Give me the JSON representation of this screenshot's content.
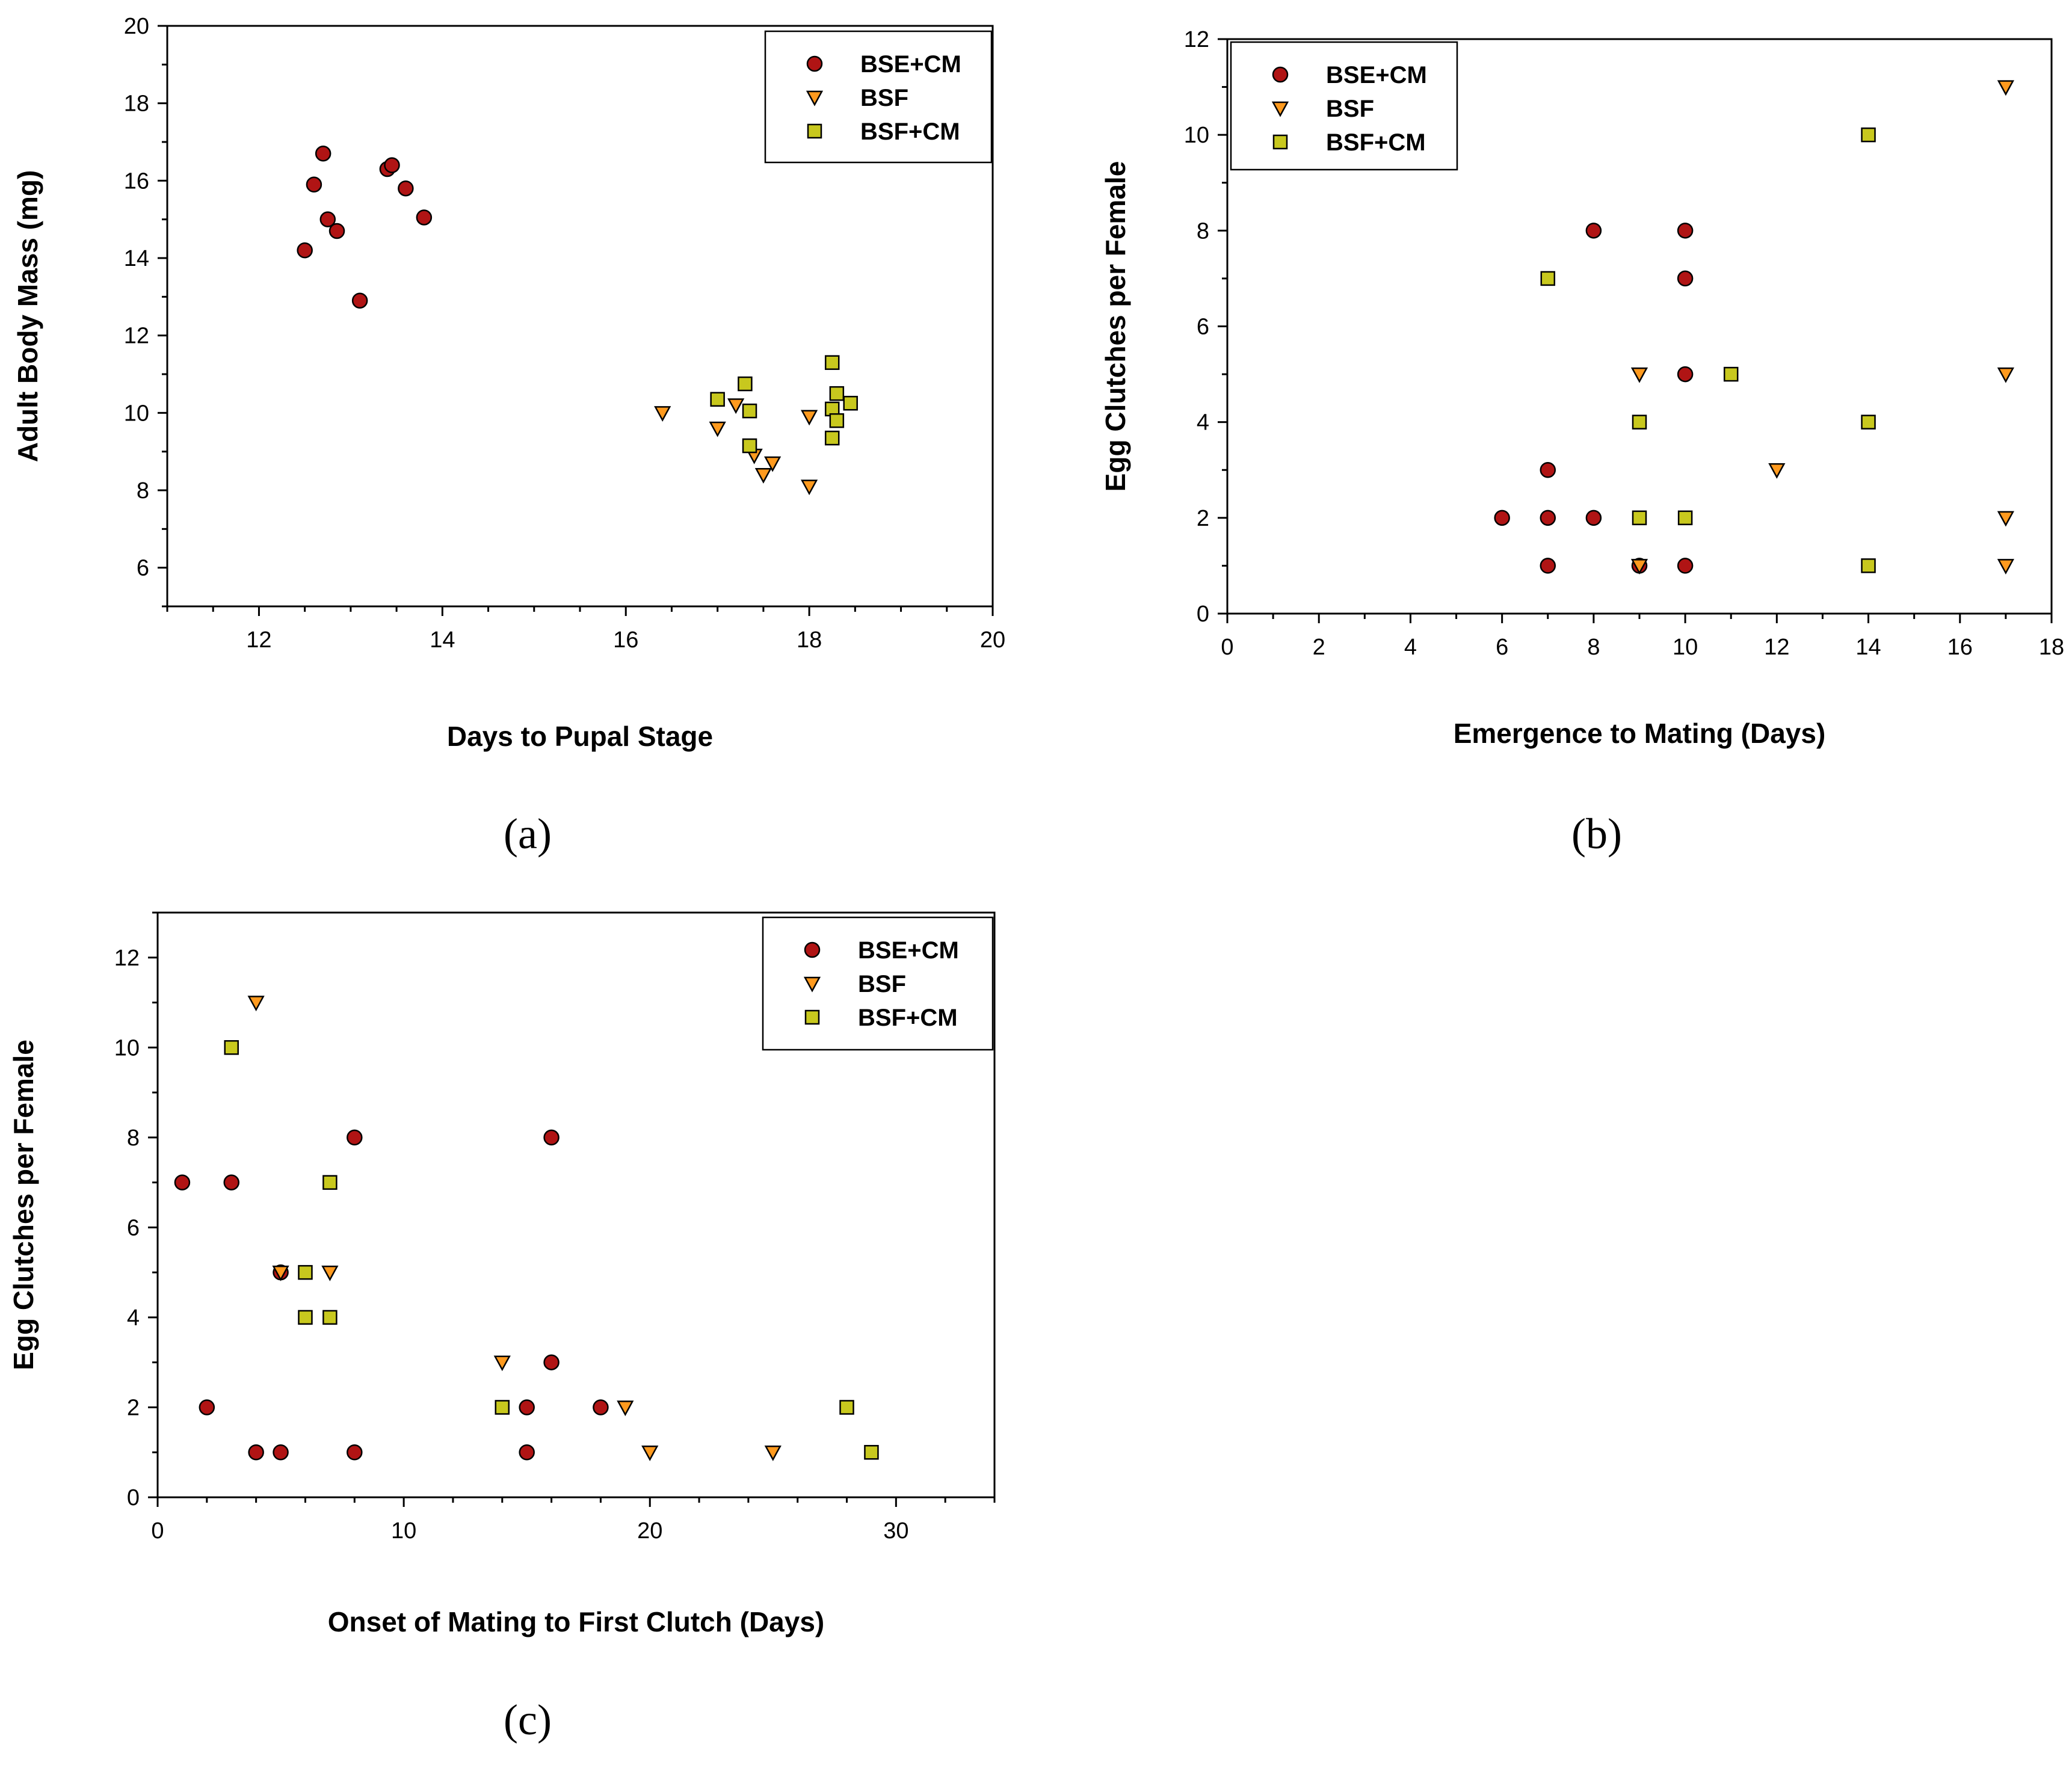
{
  "colors": {
    "BSE+CM": "#b01414",
    "BSF": "#ff9a1e",
    "BSF+CM": "#c8c81e"
  },
  "legend": [
    "BSE+CM",
    "BSF",
    "BSF+CM"
  ],
  "panel_labels": [
    "(a)",
    "(b)",
    "(c)"
  ],
  "chart_data": [
    {
      "type": "scatter",
      "xlabel": "Days to Pupal Stage",
      "ylabel": "Adult Body Mass (mg)",
      "xlim": [
        11,
        20
      ],
      "ylim": [
        5,
        20
      ],
      "xticks": [
        12,
        14,
        16,
        18,
        20
      ],
      "yticks": [
        6,
        8,
        10,
        12,
        14,
        16,
        18,
        20
      ],
      "legend_position": "top-right",
      "series": [
        {
          "name": "BSE+CM",
          "marker": "circle",
          "points": [
            [
              12.5,
              14.2
            ],
            [
              12.6,
              15.9
            ],
            [
              12.7,
              16.7
            ],
            [
              12.75,
              15.0
            ],
            [
              12.85,
              14.7
            ],
            [
              13.1,
              12.9
            ],
            [
              13.4,
              16.3
            ],
            [
              13.45,
              16.4
            ],
            [
              13.6,
              15.8
            ],
            [
              13.8,
              15.05
            ]
          ]
        },
        {
          "name": "BSF",
          "marker": "triangle-down",
          "points": [
            [
              16.4,
              10.0
            ],
            [
              17.0,
              9.6
            ],
            [
              17.2,
              10.2
            ],
            [
              17.4,
              8.9
            ],
            [
              17.5,
              8.4
            ],
            [
              17.6,
              8.7
            ],
            [
              18.0,
              9.9
            ],
            [
              18.0,
              8.1
            ]
          ]
        },
        {
          "name": "BSF+CM",
          "marker": "square",
          "points": [
            [
              17.0,
              10.35
            ],
            [
              17.3,
              10.75
            ],
            [
              17.35,
              10.05
            ],
            [
              17.35,
              9.15
            ],
            [
              18.25,
              11.3
            ],
            [
              18.25,
              10.1
            ],
            [
              18.3,
              10.5
            ],
            [
              18.3,
              9.8
            ],
            [
              18.25,
              9.35
            ],
            [
              18.45,
              10.25
            ]
          ]
        }
      ]
    },
    {
      "type": "scatter",
      "xlabel": "Emergence to Mating (Days)",
      "ylabel": "Egg Clutches per Female",
      "xlim": [
        0,
        18
      ],
      "ylim": [
        0,
        12
      ],
      "xticks": [
        0,
        2,
        4,
        6,
        8,
        10,
        12,
        14,
        16,
        18
      ],
      "yticks": [
        0,
        2,
        4,
        6,
        8,
        10,
        12
      ],
      "legend_position": "top-left",
      "series": [
        {
          "name": "BSE+CM",
          "marker": "circle",
          "points": [
            [
              6,
              2
            ],
            [
              7,
              3
            ],
            [
              7,
              2
            ],
            [
              7,
              1
            ],
            [
              8,
              8
            ],
            [
              8,
              2
            ],
            [
              9,
              1
            ],
            [
              10,
              8
            ],
            [
              10,
              7
            ],
            [
              10,
              5
            ],
            [
              10,
              1
            ]
          ]
        },
        {
          "name": "BSF",
          "marker": "triangle-down",
          "points": [
            [
              9,
              5
            ],
            [
              9,
              1
            ],
            [
              12,
              3
            ],
            [
              17,
              11
            ],
            [
              17,
              5
            ],
            [
              17,
              2
            ],
            [
              17,
              1
            ]
          ]
        },
        {
          "name": "BSF+CM",
          "marker": "square",
          "points": [
            [
              7,
              7
            ],
            [
              9,
              4
            ],
            [
              9,
              2
            ],
            [
              10,
              2
            ],
            [
              11,
              5
            ],
            [
              14,
              10
            ],
            [
              14,
              4
            ],
            [
              14,
              1
            ]
          ]
        }
      ]
    },
    {
      "type": "scatter",
      "xlabel": "Onset of Mating to First Clutch (Days)",
      "ylabel": "Egg Clutches per Female",
      "xlim": [
        0,
        34
      ],
      "ylim": [
        0,
        13
      ],
      "xticks": [
        0,
        10,
        20,
        30
      ],
      "yticks": [
        0,
        2,
        4,
        6,
        8,
        10,
        12
      ],
      "legend_position": "top-right",
      "series": [
        {
          "name": "BSE+CM",
          "marker": "circle",
          "points": [
            [
              1,
              7
            ],
            [
              2,
              2
            ],
            [
              3,
              7
            ],
            [
              4,
              1
            ],
            [
              5,
              5
            ],
            [
              5,
              1
            ],
            [
              8,
              8
            ],
            [
              8,
              1
            ],
            [
              15,
              2
            ],
            [
              15,
              1
            ],
            [
              16,
              8
            ],
            [
              16,
              3
            ],
            [
              18,
              2
            ]
          ]
        },
        {
          "name": "BSF",
          "marker": "triangle-down",
          "points": [
            [
              4,
              11
            ],
            [
              5,
              5
            ],
            [
              7,
              5
            ],
            [
              14,
              3
            ],
            [
              19,
              2
            ],
            [
              20,
              1
            ],
            [
              25,
              1
            ]
          ]
        },
        {
          "name": "BSF+CM",
          "marker": "square",
          "points": [
            [
              3,
              10
            ],
            [
              6,
              5
            ],
            [
              6,
              4
            ],
            [
              7,
              7
            ],
            [
              7,
              4
            ],
            [
              14,
              2
            ],
            [
              28,
              2
            ],
            [
              29,
              1
            ]
          ]
        }
      ]
    }
  ]
}
